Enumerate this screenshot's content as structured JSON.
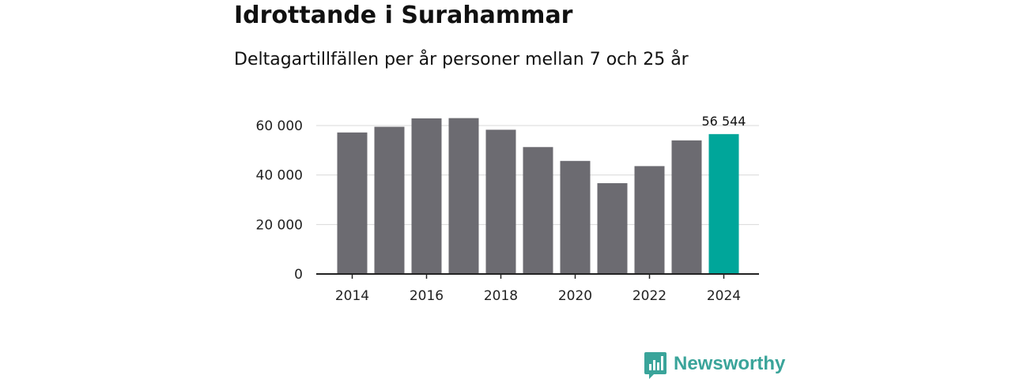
{
  "chart_data": {
    "type": "bar",
    "title": "Idrottande i Surahammar",
    "subtitle": "Deltagartillfällen per år personer mellan 7 och 25 år",
    "xlabel": "",
    "ylabel": "",
    "categories": [
      "2014",
      "2015",
      "2016",
      "2017",
      "2018",
      "2019",
      "2020",
      "2021",
      "2022",
      "2023",
      "2024"
    ],
    "values": [
      57200,
      59500,
      62900,
      63000,
      58300,
      51300,
      45700,
      36700,
      43600,
      54000,
      56544
    ],
    "ylim": [
      0,
      70000
    ],
    "y_ticks": [
      {
        "value": 0,
        "label": "0"
      },
      {
        "value": 20000,
        "label": "20 000"
      },
      {
        "value": 40000,
        "label": "40 000"
      },
      {
        "value": 60000,
        "label": "60 000"
      }
    ],
    "x_ticks": [
      "2014",
      "2016",
      "2018",
      "2020",
      "2022",
      "2024"
    ],
    "highlight": {
      "category": "2024",
      "label": "56 544"
    },
    "grid": true
  },
  "colors": {
    "bar": "#6c6b71",
    "highlight": "#00a69a",
    "grid": "#d9d9d9",
    "axis": "#222222"
  },
  "branding": {
    "logo_text": "Newsworthy",
    "logo_icon": "newsworthy-chart-icon"
  }
}
